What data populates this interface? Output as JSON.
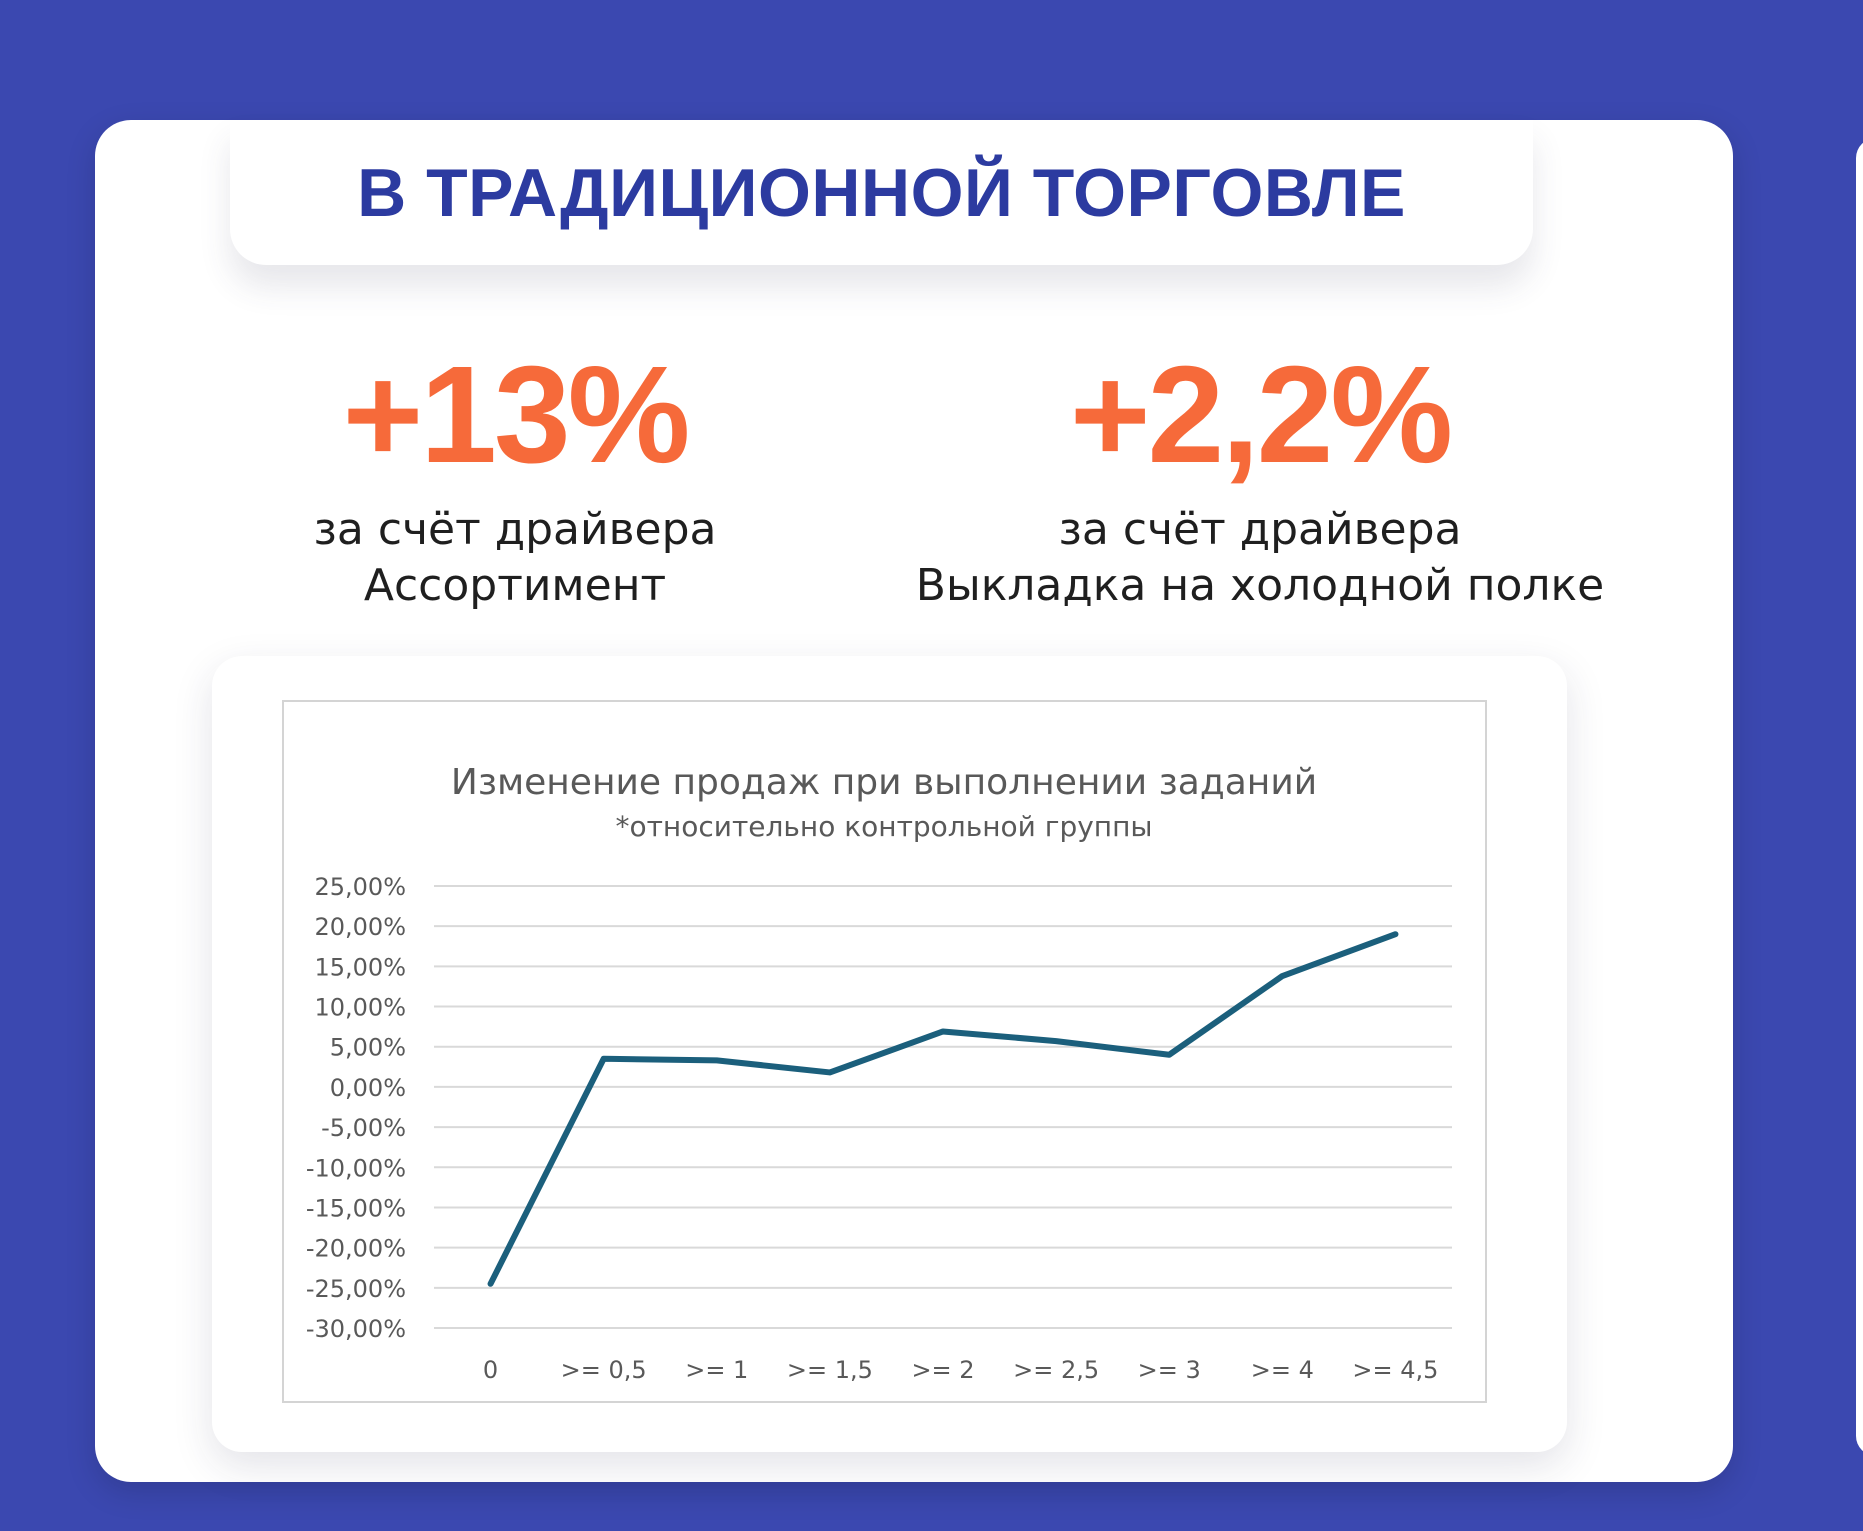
{
  "header": {
    "title": "В ТРАДИЦИОННОЙ ТОРГОВЛЕ"
  },
  "stats": [
    {
      "value": "+13%",
      "caption_line1": "за счёт драйвера",
      "caption_line2": "Ассортимент"
    },
    {
      "value": "+2,2%",
      "caption_line1": "за счёт драйвера",
      "caption_line2": "Выкладка на холодной полке"
    }
  ],
  "colors": {
    "background": "#3b48b0",
    "title": "#2c3ba0",
    "accent": "#f66a3a",
    "line": "#1b5f7c",
    "grid": "#d9d9d9"
  },
  "chart_data": {
    "type": "line",
    "title": "Изменение продаж при выполнении заданий",
    "subtitle": "*относительно контрольной группы",
    "categories": [
      "0",
      ">= 0,5",
      ">= 1",
      ">= 1,5",
      ">= 2",
      ">= 2,5",
      ">= 3",
      ">= 4",
      ">= 4,5"
    ],
    "series": [
      {
        "values": [
          -24.5,
          3.5,
          3.3,
          1.8,
          6.9,
          5.7,
          4.0,
          13.8,
          19.0
        ]
      }
    ],
    "ylim": [
      -30,
      25
    ],
    "y_ticks": [
      "25,00%",
      "20,00%",
      "15,00%",
      "10,00%",
      "5,00%",
      "0,00%",
      "-5,00%",
      "-10,00%",
      "-15,00%",
      "-20,00%",
      "-25,00%",
      "-30,00%"
    ],
    "y_tick_values": [
      25,
      20,
      15,
      10,
      5,
      0,
      -5,
      -10,
      -15,
      -20,
      -25,
      -30
    ],
    "grid": true,
    "legend": "none"
  }
}
